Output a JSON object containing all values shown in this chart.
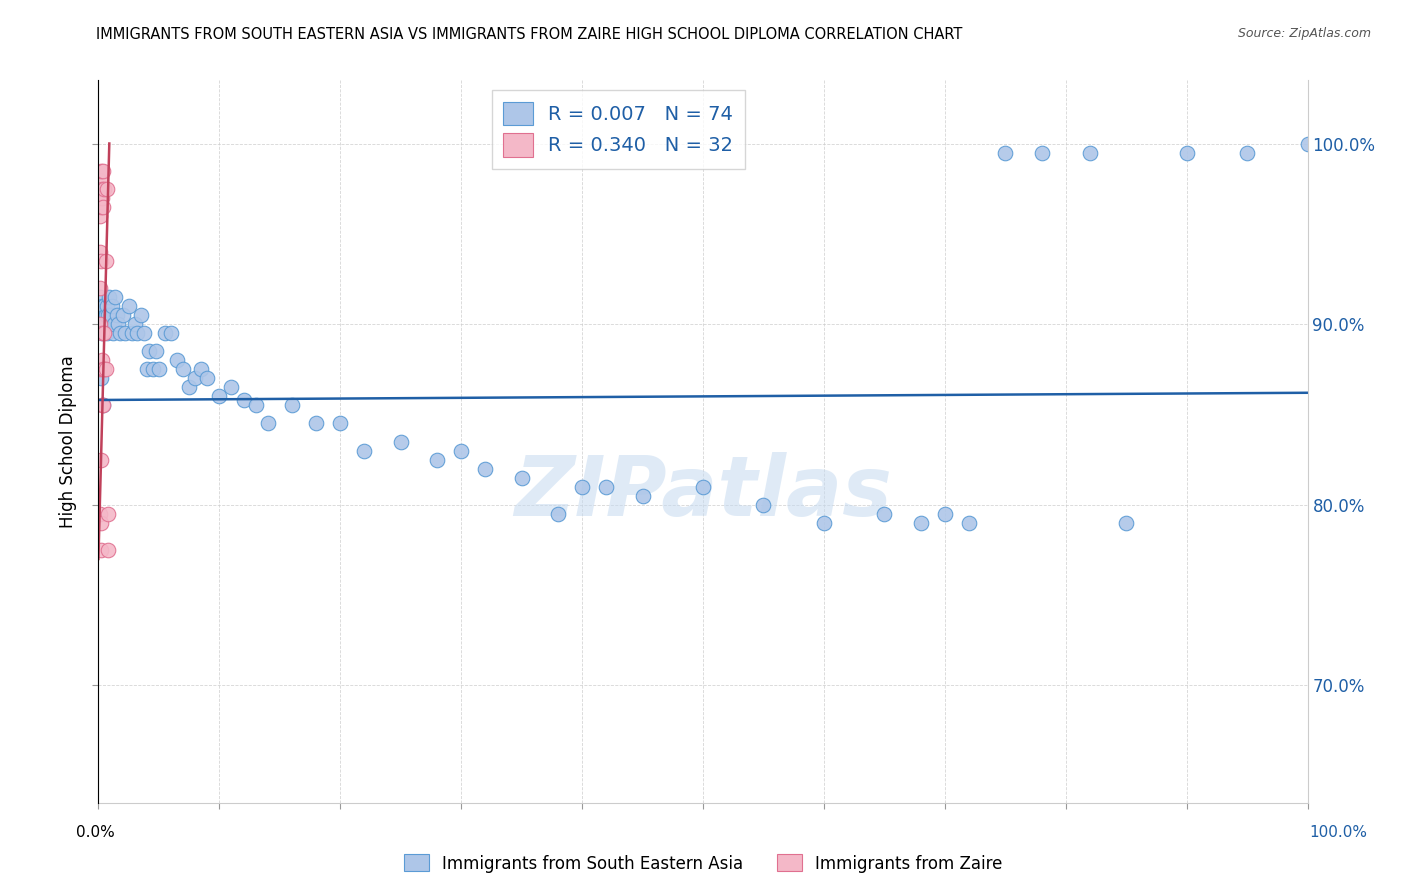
{
  "title": "IMMIGRANTS FROM SOUTH EASTERN ASIA VS IMMIGRANTS FROM ZAIRE HIGH SCHOOL DIPLOMA CORRELATION CHART",
  "source": "Source: ZipAtlas.com",
  "ylabel": "High School Diploma",
  "right_yticks": [
    "100.0%",
    "90.0%",
    "80.0%",
    "70.0%"
  ],
  "right_ytick_vals": [
    1.0,
    0.9,
    0.8,
    0.7
  ],
  "blue_color": "#aec6e8",
  "pink_color": "#f4b8c8",
  "blue_edge_color": "#5b9bd5",
  "pink_edge_color": "#e07090",
  "blue_line_color": "#1f5fa6",
  "pink_line_color": "#c0405a",
  "watermark_color": "#c5daf0",
  "watermark": "ZIPatlas",
  "blue_scatter_x": [
    0.001,
    0.002,
    0.003,
    0.003,
    0.004,
    0.005,
    0.006,
    0.007,
    0.007,
    0.008,
    0.009,
    0.01,
    0.011,
    0.012,
    0.013,
    0.014,
    0.015,
    0.016,
    0.018,
    0.02,
    0.022,
    0.025,
    0.028,
    0.03,
    0.032,
    0.035,
    0.038,
    0.04,
    0.042,
    0.045,
    0.048,
    0.05,
    0.055,
    0.06,
    0.065,
    0.07,
    0.075,
    0.08,
    0.085,
    0.09,
    0.1,
    0.11,
    0.12,
    0.13,
    0.14,
    0.16,
    0.18,
    0.2,
    0.22,
    0.25,
    0.28,
    0.3,
    0.32,
    0.35,
    0.38,
    0.4,
    0.42,
    0.45,
    0.5,
    0.55,
    0.6,
    0.65,
    0.68,
    0.7,
    0.72,
    0.75,
    0.78,
    0.82,
    0.85,
    0.9,
    0.95,
    1.0,
    0.004,
    0.002
  ],
  "blue_scatter_y": [
    0.915,
    0.905,
    0.91,
    0.895,
    0.9,
    0.91,
    0.905,
    0.895,
    0.91,
    0.905,
    0.915,
    0.905,
    0.91,
    0.895,
    0.9,
    0.915,
    0.905,
    0.9,
    0.895,
    0.905,
    0.895,
    0.91,
    0.895,
    0.9,
    0.895,
    0.905,
    0.895,
    0.875,
    0.885,
    0.875,
    0.885,
    0.875,
    0.895,
    0.895,
    0.88,
    0.875,
    0.865,
    0.87,
    0.875,
    0.87,
    0.86,
    0.865,
    0.858,
    0.855,
    0.845,
    0.855,
    0.845,
    0.845,
    0.83,
    0.835,
    0.825,
    0.83,
    0.82,
    0.815,
    0.795,
    0.81,
    0.81,
    0.805,
    0.81,
    0.8,
    0.79,
    0.795,
    0.79,
    0.795,
    0.79,
    0.995,
    0.995,
    0.995,
    0.79,
    0.995,
    0.995,
    1.0,
    0.855,
    0.87
  ],
  "pink_scatter_x": [
    0.001,
    0.001,
    0.001,
    0.001,
    0.001,
    0.001,
    0.001,
    0.001,
    0.002,
    0.002,
    0.002,
    0.002,
    0.002,
    0.002,
    0.002,
    0.003,
    0.003,
    0.003,
    0.003,
    0.003,
    0.004,
    0.004,
    0.004,
    0.004,
    0.005,
    0.005,
    0.005,
    0.006,
    0.006,
    0.007,
    0.008,
    0.008
  ],
  "pink_scatter_y": [
    0.98,
    0.97,
    0.96,
    0.94,
    0.92,
    0.9,
    0.875,
    0.795,
    0.985,
    0.97,
    0.965,
    0.935,
    0.825,
    0.79,
    0.775,
    0.975,
    0.97,
    0.895,
    0.88,
    0.855,
    0.985,
    0.965,
    0.875,
    0.855,
    0.975,
    0.895,
    0.875,
    0.935,
    0.875,
    0.975,
    0.795,
    0.775
  ],
  "blue_trend_x": [
    0.0,
    1.0
  ],
  "blue_trend_y": [
    0.858,
    0.862
  ],
  "pink_trend_x": [
    0.0,
    0.009
  ],
  "pink_trend_y": [
    0.77,
    1.0
  ],
  "xlim": [
    0.0,
    1.0
  ],
  "ylim": [
    0.635,
    1.035
  ],
  "xticks": [
    0.0,
    0.1,
    0.2,
    0.3,
    0.4,
    0.5,
    0.6,
    0.7,
    0.8,
    0.9,
    1.0
  ],
  "yticks": [
    0.7,
    0.8,
    0.9,
    1.0
  ]
}
